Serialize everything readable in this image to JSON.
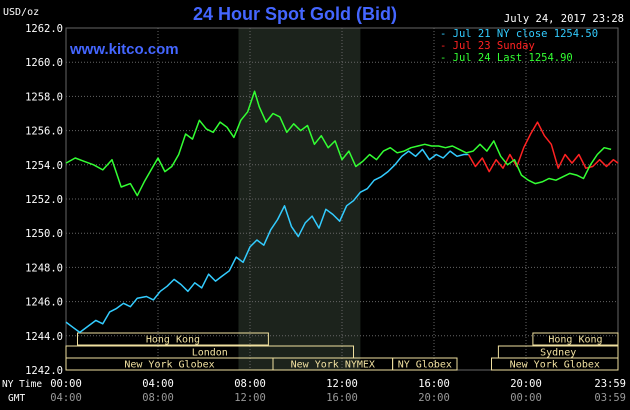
{
  "header": {
    "title": "24 Hour Spot Gold (Bid)",
    "units": "USD/oz",
    "website": "www.kitco.com",
    "timestamp": "July 24, 2017 23:28"
  },
  "legend": [
    {
      "text": "- Jul 21 NY close 1254.50",
      "color": "#33ccff"
    },
    {
      "text": "- Jul 23 Sunday",
      "color": "#ff2222"
    },
    {
      "text": "- Jul 24 Last 1254.90",
      "color": "#33ff33"
    }
  ],
  "timezones": {
    "ny_label": "NY Time",
    "gmt_label": "GMT"
  },
  "sessions": [
    {
      "label": "Hong Kong",
      "row": 0,
      "start": 0.5,
      "end": 8.8
    },
    {
      "label": "Hong Kong",
      "row": 0,
      "start": 20.3,
      "end": 24.0
    },
    {
      "label": "London",
      "row": 1,
      "start": 0.0,
      "end": 12.5
    },
    {
      "label": "Sydney",
      "row": 1,
      "start": 18.8,
      "end": 24.0
    },
    {
      "label": "New York Globex",
      "row": 2,
      "start": 0.0,
      "end": 9.0
    },
    {
      "label": "New York NYMEX",
      "row": 2,
      "start": 9.0,
      "end": 14.2
    },
    {
      "label": "NY Globex",
      "row": 2,
      "start": 14.2,
      "end": 17.0
    },
    {
      "label": "New York Globex",
      "row": 2,
      "start": 18.5,
      "end": 24.0
    }
  ],
  "colors": {
    "background": "#000000",
    "grid": "#666666",
    "title": "#4466ff",
    "axis_text": "#ffffff",
    "highlight": "#1c231c",
    "session_box": "#f0e0a0"
  },
  "chart_data": {
    "type": "line",
    "title": "24 Hour Spot Gold (Bid)",
    "ylabel": "USD/oz",
    "xlabel": "",
    "xlim": [
      0,
      24
    ],
    "ylim": [
      1242,
      1262
    ],
    "yticks": [
      1242,
      1244,
      1246,
      1248,
      1250,
      1252,
      1254,
      1256,
      1258,
      1260,
      1262
    ],
    "ytick_labels": [
      "1242.0",
      "1244.0",
      "1246.0",
      "1248.0",
      "1250.0",
      "1252.0",
      "1254.0",
      "1256.0",
      "1258.0",
      "1260.0",
      "1262.0"
    ],
    "xticks": [
      0,
      4,
      8,
      12,
      16,
      20,
      24
    ],
    "xtick_labels_ny": [
      "00:00",
      "04:00",
      "08:00",
      "12:00",
      "16:00",
      "20:00",
      "23:59"
    ],
    "xtick_labels_gmt": [
      "04:00",
      "08:00",
      "12:00",
      "16:00",
      "20:00",
      "00:00",
      "03:59"
    ],
    "highlight_range": [
      7.5,
      12.8
    ],
    "grid": true,
    "legend_position": "top-right",
    "series": [
      {
        "name": "Jul 21 NY close 1254.50",
        "color": "#33ccff",
        "x": [
          0,
          0.3,
          0.6,
          1.0,
          1.3,
          1.6,
          1.9,
          2.2,
          2.5,
          2.8,
          3.1,
          3.5,
          3.8,
          4.1,
          4.4,
          4.7,
          5.0,
          5.3,
          5.6,
          5.9,
          6.2,
          6.5,
          6.8,
          7.1,
          7.4,
          7.7,
          8.0,
          8.3,
          8.6,
          8.9,
          9.2,
          9.5,
          9.8,
          10.1,
          10.4,
          10.7,
          11.0,
          11.3,
          11.6,
          11.9,
          12.2,
          12.5,
          12.8,
          13.1,
          13.4,
          13.7,
          14.0,
          14.3,
          14.6,
          14.9,
          15.2,
          15.5,
          15.8,
          16.1,
          16.4,
          16.7,
          17.0,
          17.3,
          17.5
        ],
        "y": [
          1244.8,
          1244.5,
          1244.2,
          1244.6,
          1244.9,
          1244.7,
          1245.4,
          1245.6,
          1245.9,
          1245.7,
          1246.2,
          1246.3,
          1246.1,
          1246.6,
          1246.9,
          1247.3,
          1247.0,
          1246.6,
          1247.1,
          1246.8,
          1247.6,
          1247.2,
          1247.5,
          1247.8,
          1248.6,
          1248.3,
          1249.2,
          1249.6,
          1249.3,
          1250.2,
          1250.8,
          1251.6,
          1250.4,
          1249.8,
          1250.6,
          1251.0,
          1250.3,
          1251.4,
          1251.1,
          1250.7,
          1251.6,
          1251.9,
          1252.4,
          1252.6,
          1253.1,
          1253.3,
          1253.6,
          1254.0,
          1254.5,
          1254.8,
          1254.5,
          1254.9,
          1254.3,
          1254.6,
          1254.4,
          1254.8,
          1254.5,
          1254.6,
          1254.6
        ]
      },
      {
        "name": "Jul 23 Sunday",
        "color": "#ff2222",
        "x": [
          17.5,
          17.8,
          18.1,
          18.4,
          18.7,
          19.0,
          19.3,
          19.6,
          19.9,
          20.2,
          20.5,
          20.8,
          21.1,
          21.4,
          21.7,
          22.0,
          22.3,
          22.6,
          22.9,
          23.2,
          23.5,
          23.8,
          24.0
        ],
        "y": [
          1254.6,
          1253.9,
          1254.4,
          1253.6,
          1254.3,
          1253.8,
          1254.6,
          1253.9,
          1255.0,
          1255.8,
          1256.5,
          1255.7,
          1255.2,
          1253.8,
          1254.6,
          1254.1,
          1254.6,
          1253.8,
          1253.9,
          1254.3,
          1253.9,
          1254.3,
          1254.1
        ]
      },
      {
        "name": "Jul 24 Last 1254.90",
        "color": "#33ff33",
        "x": [
          0,
          0.4,
          0.8,
          1.2,
          1.6,
          2.0,
          2.4,
          2.8,
          3.1,
          3.4,
          3.7,
          4.0,
          4.3,
          4.6,
          4.9,
          5.2,
          5.5,
          5.8,
          6.1,
          6.4,
          6.7,
          7.0,
          7.3,
          7.6,
          7.9,
          8.2,
          8.4,
          8.7,
          9.0,
          9.3,
          9.6,
          9.9,
          10.2,
          10.5,
          10.8,
          11.1,
          11.4,
          11.7,
          12.0,
          12.3,
          12.6,
          12.9,
          13.2,
          13.5,
          13.8,
          14.1,
          14.4,
          14.7,
          15.0,
          15.3,
          15.6,
          15.9,
          16.2,
          16.5,
          16.8,
          17.1,
          17.4,
          17.7,
          18.0,
          18.3,
          18.6,
          18.9,
          19.2,
          19.5,
          19.8,
          20.1,
          20.4,
          20.7,
          21.0,
          21.3,
          21.6,
          21.9,
          22.2,
          22.5,
          22.8,
          23.1,
          23.4,
          23.7
        ],
        "y": [
          1254.1,
          1254.4,
          1254.2,
          1254.0,
          1253.7,
          1254.3,
          1252.7,
          1252.9,
          1252.2,
          1253.0,
          1253.7,
          1254.4,
          1253.6,
          1253.9,
          1254.6,
          1255.8,
          1255.5,
          1256.6,
          1256.1,
          1255.9,
          1256.5,
          1256.2,
          1255.6,
          1256.6,
          1257.1,
          1258.3,
          1257.4,
          1256.5,
          1257.0,
          1256.8,
          1255.9,
          1256.4,
          1256.0,
          1256.3,
          1255.2,
          1255.7,
          1255.0,
          1255.4,
          1254.3,
          1254.8,
          1253.9,
          1254.2,
          1254.6,
          1254.3,
          1254.8,
          1255.0,
          1254.7,
          1254.8,
          1255.0,
          1255.1,
          1255.2,
          1255.1,
          1255.1,
          1255.0,
          1255.1,
          1254.9,
          1254.7,
          1254.8,
          1255.2,
          1254.8,
          1255.4,
          1254.5,
          1254.0,
          1254.3,
          1253.4,
          1253.1,
          1252.9,
          1253.0,
          1253.2,
          1253.1,
          1253.3,
          1253.5,
          1253.4,
          1253.2,
          1254.0,
          1254.6,
          1255.0,
          1254.9
        ]
      }
    ]
  }
}
